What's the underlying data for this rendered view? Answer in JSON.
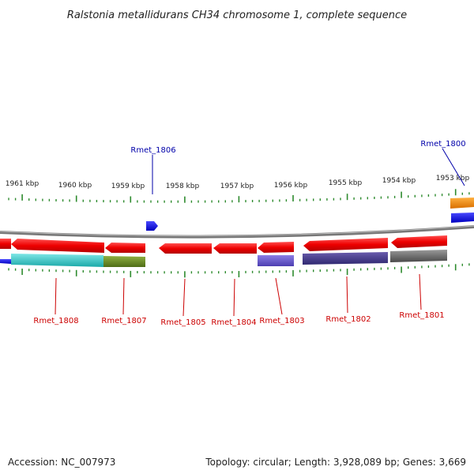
{
  "title": "Ralstonia metallidurans CH34 chromosome 1, complete sequence",
  "accession_label": "Accession: NC_007973",
  "summary_label": "Topology: circular; Length: 3,928,089 bp; Genes: 3,669",
  "ticks": [
    "1961 kbp",
    "1960 kbp",
    "1959 kbp",
    "1958 kbp",
    "1957 kbp",
    "1956 kbp",
    "1955 kbp",
    "1954 kbp",
    "1953 kbp"
  ],
  "genes_above": [
    {
      "name": "Rmet_1806",
      "color": "#0000aa"
    },
    {
      "name": "Rmet_1800",
      "color": "#0000aa"
    }
  ],
  "genes_below": [
    {
      "name": "Rmet_1808",
      "color": "#cc0000"
    },
    {
      "name": "Rmet_1807",
      "color": "#cc0000"
    },
    {
      "name": "Rmet_1805",
      "color": "#cc0000"
    },
    {
      "name": "Rmet_1804",
      "color": "#cc0000"
    },
    {
      "name": "Rmet_1803",
      "color": "#cc0000"
    },
    {
      "name": "Rmet_1802",
      "color": "#cc0000"
    },
    {
      "name": "Rmet_1801",
      "color": "#cc0000"
    }
  ],
  "colors": {
    "backbone": "#888888",
    "tick": "#2e8b2e",
    "cds": "#ee0000",
    "forward_gene": "#0000ee",
    "cog_cyan": "#22cccc",
    "cog_olive": "#6b8e23",
    "cog_slate": "#6a5acd",
    "cog_navy": "#483d8b",
    "cog_gray": "#666666",
    "cog_orange": "#ff8c00"
  }
}
